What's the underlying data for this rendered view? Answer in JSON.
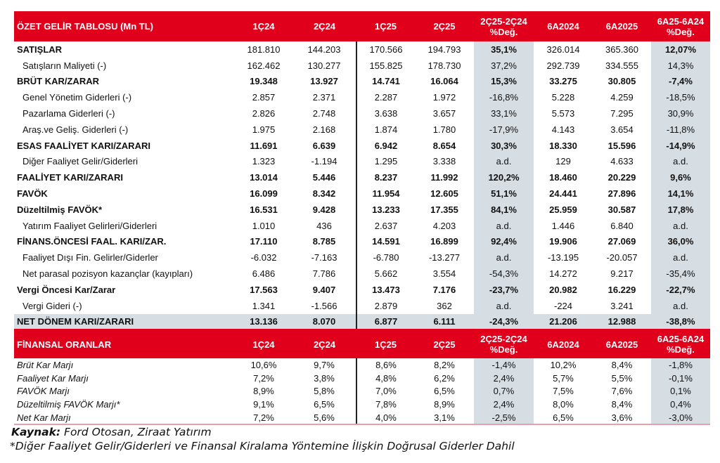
{
  "income_table": {
    "headers": [
      "ÖZET GELİR TABLOSU (Mn TL)",
      "1Ç24",
      "2Ç24",
      "1Ç25",
      "2Ç25",
      "2Ç25-2Ç24\n%Değ.",
      "6A2024",
      "6A2025",
      "6A25-6A24\n%Değ."
    ],
    "rows": [
      {
        "label": "SATIŞLAR",
        "bold": "label",
        "values": [
          "181.810",
          "144.203",
          "170.566",
          "194.793",
          "35,1%",
          "326.014",
          "365.360",
          "12,07%"
        ]
      },
      {
        "label": "Satışların Maliyeti (-)",
        "indent": true,
        "values": [
          "162.462",
          "130.277",
          "155.825",
          "178.730",
          "37,2%",
          "292.739",
          "334.555",
          "14,3%"
        ]
      },
      {
        "label": "BRÜT KAR/ZARAR",
        "bold": "all",
        "values": [
          "19.348",
          "13.927",
          "14.741",
          "16.064",
          "15,3%",
          "33.275",
          "30.805",
          "-7,4%"
        ]
      },
      {
        "label": "Genel Yönetim Giderleri (-)",
        "indent": true,
        "values": [
          "2.857",
          "2.371",
          "2.287",
          "1.972",
          "-16,8%",
          "5.228",
          "4.259",
          "-18,5%"
        ]
      },
      {
        "label": "Pazarlama Giderleri (-)",
        "indent": true,
        "values": [
          "2.826",
          "2.748",
          "3.638",
          "3.657",
          "33,1%",
          "5.573",
          "7.295",
          "30,9%"
        ]
      },
      {
        "label": "Araş.ve Geliş. Giderleri (-)",
        "indent": true,
        "values": [
          "1.975",
          "2.168",
          "1.874",
          "1.780",
          "-17,9%",
          "4.143",
          "3.654",
          "-11,8%"
        ]
      },
      {
        "label": "ESAS FAALİYET KARI/ZARARI",
        "bold": "all",
        "values": [
          "11.691",
          "6.639",
          "6.942",
          "8.654",
          "30,3%",
          "18.330",
          "15.596",
          "-14,9%"
        ]
      },
      {
        "label": "Diğer Faaliyet Gelir/Giderleri",
        "indent": true,
        "values": [
          "1.323",
          "-1.194",
          "1.295",
          "3.338",
          "a.d.",
          "129",
          "4.633",
          "a.d."
        ]
      },
      {
        "label": "FAALİYET KARI/ZARARI",
        "bold": "all",
        "values": [
          "13.014",
          "5.446",
          "8.237",
          "11.992",
          "120,2%",
          "18.460",
          "20.229",
          "9,6%"
        ]
      },
      {
        "label": "FAVÖK",
        "bold": "all",
        "values": [
          "16.099",
          "8.342",
          "11.954",
          "12.605",
          "51,1%",
          "24.441",
          "27.896",
          "14,1%"
        ]
      },
      {
        "label": "Düzeltilmiş FAVÖK*",
        "bold": "all",
        "values": [
          "16.531",
          "9.428",
          "13.233",
          "17.355",
          "84,1%",
          "25.959",
          "30.587",
          "17,8%"
        ]
      },
      {
        "label": "Yatırım Faaliyet Gelirleri/Giderleri",
        "indent": true,
        "values": [
          "1.010",
          "436",
          "2.637",
          "4.203",
          "a.d.",
          "1.446",
          "6.840",
          "a.d."
        ]
      },
      {
        "label": "FİNANS.ÖNCESİ FAAL. KARI/ZAR.",
        "bold": "all",
        "values": [
          "17.110",
          "8.785",
          "14.591",
          "16.899",
          "92,4%",
          "19.906",
          "27.069",
          "36,0%"
        ]
      },
      {
        "label": "Faaliyet Dışı Fin. Gelirler/Giderler",
        "indent": true,
        "values": [
          "-6.032",
          "-7.163",
          "-6.780",
          "-13.277",
          "a.d.",
          "-13.195",
          "-20.057",
          "a.d."
        ]
      },
      {
        "label": "Net parasal pozisyon kazançlar (kayıpları)",
        "indent": true,
        "values": [
          "6.486",
          "7.786",
          "5.662",
          "3.554",
          "-54,3%",
          "14.272",
          "9.217",
          "-35,4%"
        ]
      },
      {
        "label": "Vergi Öncesi Kar/Zarar",
        "bold": "all",
        "values": [
          "17.563",
          "9.407",
          "13.473",
          "7.176",
          "-23,7%",
          "20.982",
          "16.229",
          "-22,7%"
        ]
      },
      {
        "label": "Vergi Gideri (-)",
        "indent": true,
        "values": [
          "1.341",
          "-1.566",
          "2.879",
          "362",
          "a.d.",
          "-224",
          "3.241",
          "a.d."
        ]
      },
      {
        "label": "NET DÖNEM KARI/ZARARI",
        "bold": "net",
        "values": [
          "13.136",
          "8.070",
          "6.877",
          "6.111",
          "-24,3%",
          "21.206",
          "12.988",
          "-38,8%"
        ]
      }
    ]
  },
  "ratio_table": {
    "headers": [
      "FİNANSAL ORANLAR",
      "1Ç24",
      "2Ç24",
      "1Ç25",
      "2Ç25",
      "2Ç25-2Ç24\n%Değ.",
      "6A2024",
      "6A2025",
      "6A25-6A24\n%Değ."
    ],
    "rows": [
      {
        "label": "Brüt Kar Marjı",
        "values": [
          "10,6%",
          "9,7%",
          "8,6%",
          "8,2%",
          "-1,4%",
          "10,2%",
          "8,4%",
          "-1,8%"
        ]
      },
      {
        "label": "Faaliyet Kar Marjı",
        "values": [
          "7,2%",
          "3,8%",
          "4,8%",
          "6,2%",
          "2,4%",
          "5,7%",
          "5,5%",
          "-0,1%"
        ]
      },
      {
        "label": "FAVÖK Marjı",
        "values": [
          "8,9%",
          "5,8%",
          "7,0%",
          "6,5%",
          "0,7%",
          "7,5%",
          "7,6%",
          "0,1%"
        ]
      },
      {
        "label": "Düzeltilmiş FAVÖK Marjı*",
        "values": [
          "9,1%",
          "6,5%",
          "7,8%",
          "8,9%",
          "2,4%",
          "8,0%",
          "8,4%",
          "0,4%"
        ]
      },
      {
        "label": "Net Kar Marjı",
        "values": [
          "7,2%",
          "5,6%",
          "4,0%",
          "3,1%",
          "-2,5%",
          "6,5%",
          "3,6%",
          "-3,0%"
        ]
      }
    ]
  },
  "footer": {
    "source_label": "Kaynak:",
    "source_text": " Ford Otosan, Ziraat Yatırım",
    "note": "*Diğer Faaliyet Gelir/Giderleri ve Finansal Kiralama Yöntemine İlişkin Doğrusal Giderler Dahil"
  },
  "colors": {
    "header_red": "#e0001b",
    "shade_grey": "#d6dde3"
  }
}
